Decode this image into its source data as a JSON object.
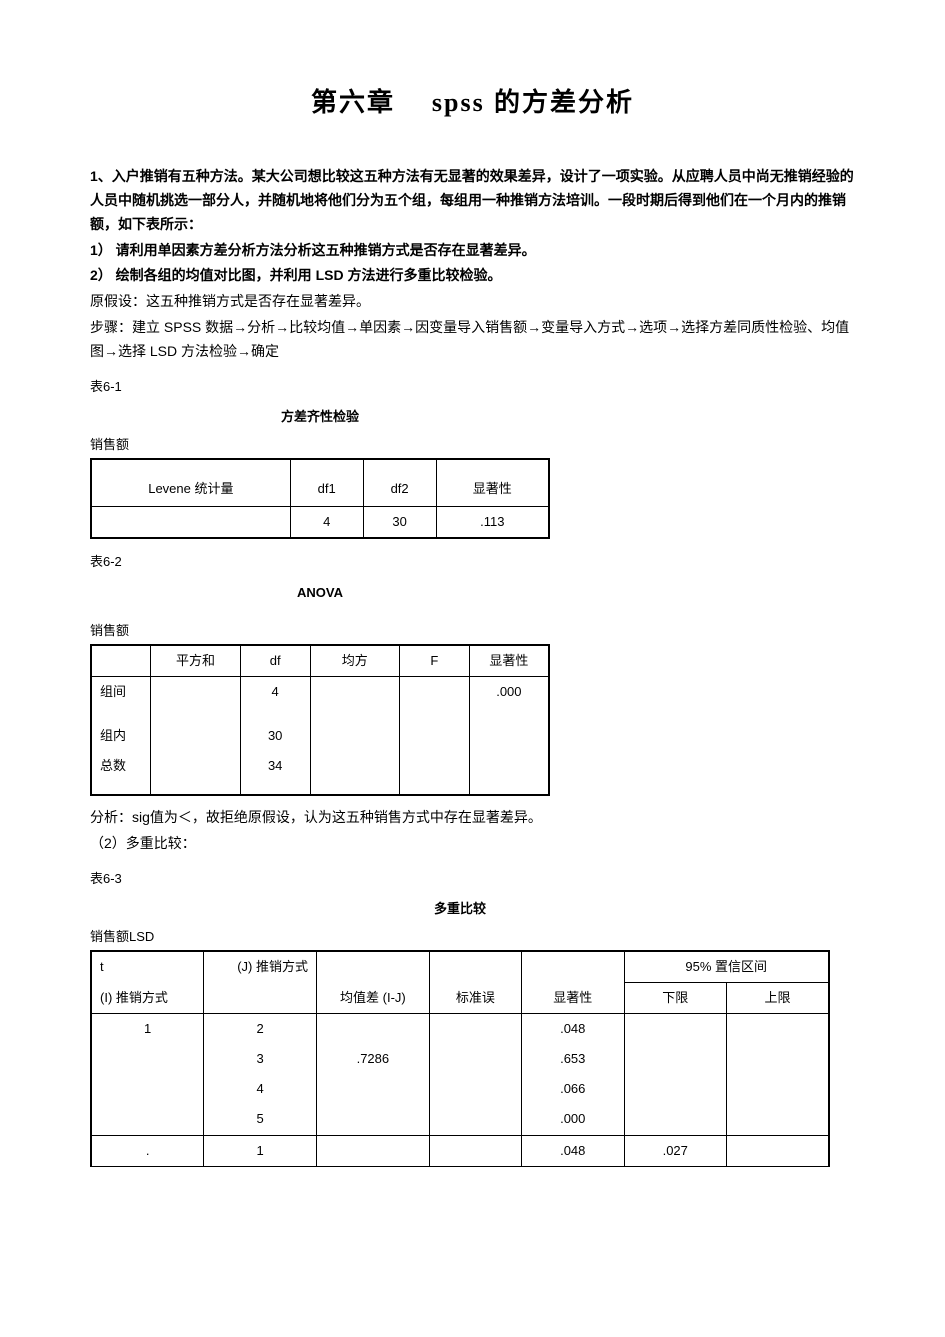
{
  "chapter_title_cn1": "第六章",
  "chapter_title_latin": "spss",
  "chapter_title_cn2": "的方差分析",
  "p1": "1、入户推销有五种方法。某大公司想比较这五种方法有无显著的效果差异，设计了一项实验。从应聘人员中尚无推销经验的人员中随机挑选一部分人，并随机地将他们分为五个组，每组用一种推销方法培训。一段时期后得到他们在一个月内的推销额，如下表所示：",
  "p2": "1） 请利用单因素方差分析方法分析这五种推销方式是否存在显著差异。",
  "p3": "2） 绘制各组的均值对比图，并利用 LSD 方法进行多重比较检验。",
  "p4": "原假设：这五种推销方式是否存在显著差异。",
  "p5": "步骤：建立 SPSS 数据→分析→比较均值→单因素→因变量导入销售额→变量导入方式→选项→选择方差同质性检验、均值图→选择 LSD 方法检验→确定",
  "lbl_61": "表6-1",
  "table61": {
    "title": "方差齐性检验",
    "subtitle": "销售额",
    "headers": [
      "Levene  统计量",
      "df1",
      "df2",
      "显著性"
    ],
    "row": [
      "",
      "4",
      "30",
      ".113"
    ],
    "widths": [
      "140px",
      "100px",
      "100px",
      "100px"
    ],
    "border_color": "#000000"
  },
  "lbl_62": "表6-2",
  "table62": {
    "title": "ANOVA",
    "subtitle": "销售额",
    "headers": [
      "",
      "平方和",
      "df",
      "均方",
      "F",
      "显著性"
    ],
    "rows": [
      {
        "label": "组间",
        "ss": "",
        "df": "4",
        "ms": "",
        "f": "",
        "sig": ".000"
      },
      {
        "label": "",
        "ss": "",
        "df": "",
        "ms": "",
        "f": "",
        "sig": ""
      },
      {
        "label": "组内",
        "ss": "",
        "df": "30",
        "ms": "",
        "f": "",
        "sig": ""
      },
      {
        "label": "总数",
        "ss": "",
        "df": "34",
        "ms": "",
        "f": "",
        "sig": ""
      }
    ],
    "widths": [
      "60px",
      "90px",
      "70px",
      "90px",
      "70px",
      "80px"
    ]
  },
  "analysis": "分析：sig值为＜，故拒绝原假设，认为这五种销售方式中存在显著差异。",
  "analysis2": "（2）多重比较：",
  "lbl_63": "表6-3",
  "table63": {
    "title": "多重比较",
    "subtitle": "销售额LSD",
    "h_t": "t",
    "h_j": "(J) 推销方式",
    "h_ci": "95%   置信区间",
    "h_i": "(I) 推销方式",
    "h_md": "均值差  (I-J)",
    "h_se": "标准误",
    "h_sig": "显著性",
    "h_lo": "下限",
    "h_hi": "上限",
    "rows": [
      {
        "i": "1",
        "j": "2",
        "md": "",
        "se": "",
        "sig": ".048",
        "lo": "",
        "hi": "",
        "cls": ""
      },
      {
        "i": "",
        "j": "3",
        "md": ".7286",
        "se": "",
        "sig": ".653",
        "lo": "",
        "hi": "",
        "cls": ""
      },
      {
        "i": "",
        "j": "4",
        "md": "",
        "se": "",
        "sig": ".066",
        "lo": "",
        "hi": "",
        "cls": "short"
      },
      {
        "i": "",
        "j": "5",
        "md": "",
        "se": "",
        "sig": ".000",
        "lo": "",
        "hi": "",
        "cls": "short"
      },
      {
        "i": ".",
        "j": "1",
        "md": "",
        "se": "",
        "sig": ".048",
        "lo": ".027",
        "hi": "",
        "cls": "short sep-top"
      }
    ]
  }
}
